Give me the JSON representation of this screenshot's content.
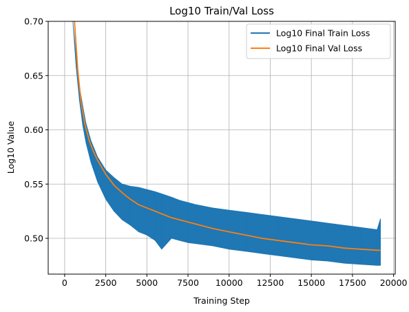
{
  "chart_data": {
    "type": "line",
    "title": "Log10 Train/Val Loss",
    "xlabel": "Training Step",
    "ylabel": "Log10 Value",
    "xlim": [
      -1000,
      20100
    ],
    "ylim": [
      0.467,
      0.7
    ],
    "xticks": [
      0,
      2500,
      5000,
      7500,
      10000,
      12500,
      15000,
      17500,
      20000
    ],
    "yticks": [
      0.5,
      0.55,
      0.6,
      0.65,
      0.7
    ],
    "grid": true,
    "legend_position": "top-right",
    "series": [
      {
        "name": "Log10 Final Train Loss",
        "color": "#1f77b4",
        "x": [
          500,
          700,
          900,
          1100,
          1300,
          1600,
          2000,
          2500,
          3000,
          3500,
          4000,
          4500,
          5000,
          5500,
          5900,
          6500,
          7000,
          7500,
          8000,
          9000,
          10000,
          11000,
          12000,
          13000,
          14000,
          15000,
          16000,
          17000,
          18000,
          19000,
          19200
        ],
        "lower": [
          0.7,
          0.658,
          0.627,
          0.604,
          0.588,
          0.57,
          0.552,
          0.536,
          0.525,
          0.517,
          0.512,
          0.506,
          0.503,
          0.498,
          0.49,
          0.5,
          0.498,
          0.496,
          0.495,
          0.493,
          0.49,
          0.488,
          0.486,
          0.484,
          0.482,
          0.48,
          0.479,
          0.477,
          0.476,
          0.475,
          0.475
        ],
        "upper": [
          0.7,
          0.668,
          0.64,
          0.622,
          0.606,
          0.59,
          0.575,
          0.563,
          0.556,
          0.55,
          0.548,
          0.547,
          0.545,
          0.543,
          0.541,
          0.538,
          0.535,
          0.533,
          0.531,
          0.528,
          0.526,
          0.524,
          0.522,
          0.52,
          0.518,
          0.516,
          0.514,
          0.512,
          0.51,
          0.508,
          0.518
        ]
      },
      {
        "name": "Log10 Final Val Loss",
        "color": "#ff7f0e",
        "x": [
          600,
          800,
          1000,
          1250,
          1500,
          1750,
          2000,
          2500,
          3000,
          3500,
          4000,
          4500,
          5000,
          5500,
          6000,
          6500,
          7000,
          7500,
          8000,
          9000,
          10000,
          11000,
          12000,
          13000,
          14000,
          15000,
          16000,
          17000,
          18000,
          19000,
          19200
        ],
        "values": [
          0.7,
          0.655,
          0.625,
          0.604,
          0.59,
          0.58,
          0.572,
          0.559,
          0.549,
          0.542,
          0.536,
          0.531,
          0.528,
          0.525,
          0.522,
          0.519,
          0.517,
          0.515,
          0.513,
          0.509,
          0.506,
          0.503,
          0.5,
          0.498,
          0.496,
          0.494,
          0.493,
          0.491,
          0.49,
          0.489,
          0.489
        ]
      }
    ]
  }
}
